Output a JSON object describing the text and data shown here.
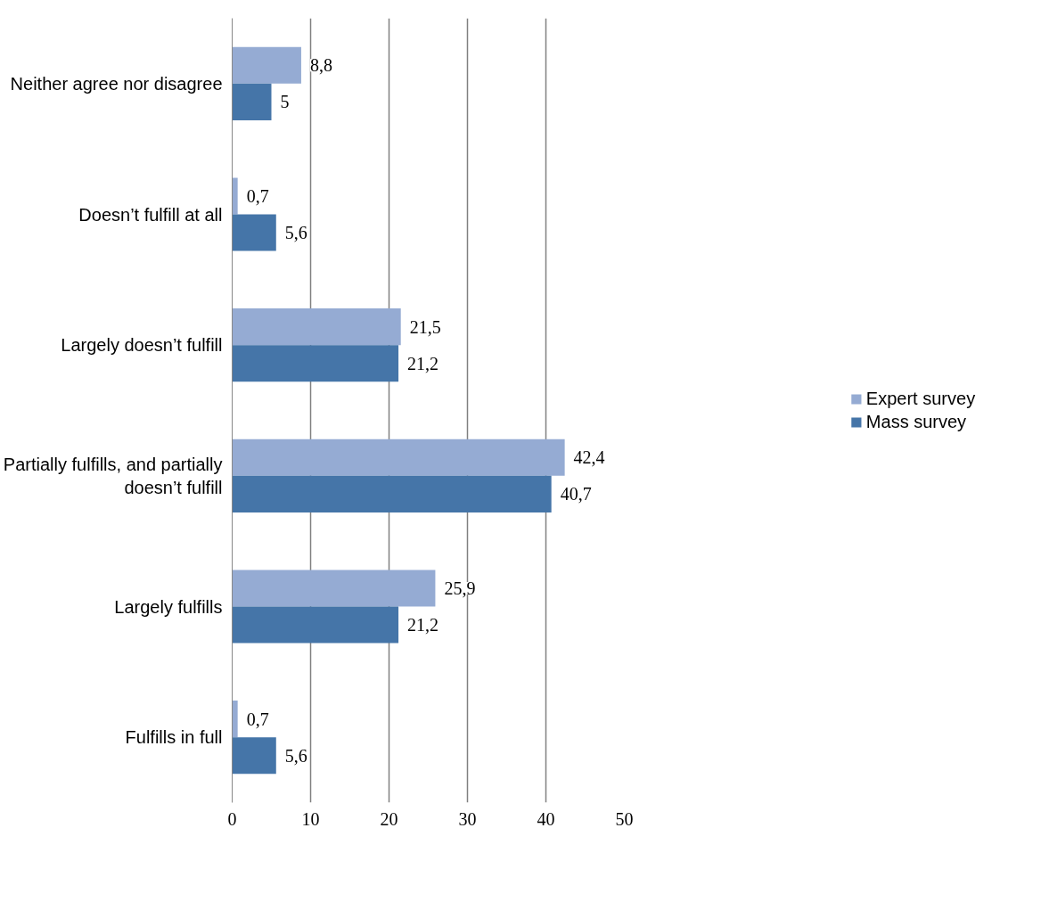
{
  "chart_data": {
    "type": "bar",
    "orientation": "horizontal",
    "categories": [
      "Neither agree nor disagree",
      "Doesn’t fulfill at all",
      "Largely doesn’t fulfill",
      "Partially fulfills, and partially doesn’t fulfill",
      "Largely fulfills",
      "Fulfills in full"
    ],
    "series": [
      {
        "name": "Expert survey",
        "color": "#95abd3",
        "values": [
          8.8,
          0.7,
          21.5,
          42.4,
          25.9,
          0.7
        ],
        "value_labels": [
          "8,8",
          "0,7",
          "21,5",
          "42,4",
          "25,9",
          "0,7"
        ]
      },
      {
        "name": "Mass survey",
        "color": "#4575a8",
        "values": [
          5,
          5.6,
          21.2,
          40.7,
          21.2,
          5.6
        ],
        "value_labels": [
          "5",
          "5,6",
          "21,2",
          "40,7",
          "21,2",
          "5,6"
        ]
      }
    ],
    "xlim": [
      0,
      50
    ],
    "xticks": [
      0,
      10,
      20,
      30,
      40,
      50
    ],
    "grid": "x",
    "legend": "right"
  }
}
